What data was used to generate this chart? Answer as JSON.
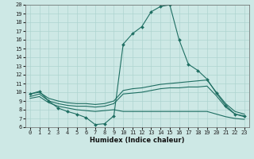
{
  "xlabel": "Humidex (Indice chaleur)",
  "xlim": [
    -0.5,
    23.5
  ],
  "ylim": [
    6,
    20
  ],
  "xticks": [
    0,
    1,
    2,
    3,
    4,
    5,
    6,
    7,
    8,
    9,
    10,
    11,
    12,
    13,
    14,
    15,
    16,
    17,
    18,
    19,
    20,
    21,
    22,
    23
  ],
  "yticks": [
    6,
    7,
    8,
    9,
    10,
    11,
    12,
    13,
    14,
    15,
    16,
    17,
    18,
    19,
    20
  ],
  "bg_color": "#cde8e5",
  "grid_color": "#aed4d0",
  "line_color": "#1e6e62",
  "lines": [
    {
      "x": [
        0,
        1,
        2,
        3,
        4,
        5,
        6,
        7,
        8,
        9,
        10,
        11,
        12,
        13,
        14,
        15,
        16,
        17,
        18,
        19,
        20,
        21,
        22,
        23
      ],
      "y": [
        9.8,
        10.1,
        9.0,
        8.2,
        7.8,
        7.5,
        7.1,
        6.3,
        6.4,
        7.3,
        15.5,
        16.7,
        17.5,
        19.2,
        19.8,
        20.0,
        16.0,
        13.2,
        12.5,
        11.5,
        9.9,
        8.5,
        7.5,
        7.3
      ],
      "marker": true
    },
    {
      "x": [
        0,
        1,
        2,
        3,
        4,
        5,
        6,
        7,
        8,
        9,
        10,
        11,
        12,
        13,
        14,
        15,
        16,
        17,
        18,
        19,
        20,
        21,
        22,
        23
      ],
      "y": [
        9.8,
        10.0,
        9.3,
        9.0,
        8.8,
        8.7,
        8.7,
        8.6,
        8.7,
        9.0,
        10.2,
        10.4,
        10.5,
        10.7,
        10.9,
        11.0,
        11.1,
        11.2,
        11.3,
        11.4,
        10.0,
        8.7,
        7.8,
        7.5
      ],
      "marker": false
    },
    {
      "x": [
        0,
        1,
        2,
        3,
        4,
        5,
        6,
        7,
        8,
        9,
        10,
        11,
        12,
        13,
        14,
        15,
        16,
        17,
        18,
        19,
        20,
        21,
        22,
        23
      ],
      "y": [
        9.5,
        9.8,
        9.0,
        8.7,
        8.5,
        8.4,
        8.4,
        8.3,
        8.4,
        8.7,
        9.8,
        9.9,
        10.0,
        10.2,
        10.4,
        10.5,
        10.5,
        10.6,
        10.6,
        10.7,
        9.6,
        8.3,
        7.5,
        7.2
      ],
      "marker": false
    },
    {
      "x": [
        0,
        1,
        2,
        3,
        4,
        5,
        6,
        7,
        8,
        9,
        10,
        11,
        12,
        13,
        14,
        15,
        16,
        17,
        18,
        19,
        20,
        21,
        22,
        23
      ],
      "y": [
        9.3,
        9.5,
        8.8,
        8.4,
        8.2,
        8.0,
        7.9,
        7.8,
        7.9,
        8.0,
        7.8,
        7.8,
        7.8,
        7.8,
        7.8,
        7.8,
        7.8,
        7.8,
        7.8,
        7.8,
        7.5,
        7.2,
        7.0,
        6.9
      ],
      "marker": false
    }
  ],
  "figsize": [
    3.2,
    2.0
  ],
  "dpi": 100
}
